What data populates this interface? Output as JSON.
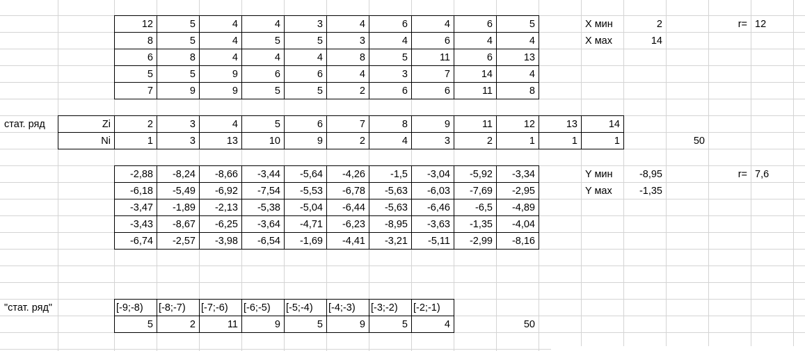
{
  "sheet": {
    "x_values": [
      [
        "12",
        "5",
        "4",
        "4",
        "3",
        "4",
        "6",
        "4",
        "6",
        "5"
      ],
      [
        "8",
        "5",
        "4",
        "5",
        "5",
        "3",
        "4",
        "6",
        "4",
        "4"
      ],
      [
        "6",
        "8",
        "4",
        "4",
        "4",
        "8",
        "5",
        "11",
        "6",
        "13"
      ],
      [
        "5",
        "5",
        "9",
        "6",
        "6",
        "4",
        "3",
        "7",
        "14",
        "4"
      ],
      [
        "7",
        "9",
        "9",
        "5",
        "5",
        "2",
        "6",
        "6",
        "11",
        "8"
      ]
    ],
    "x_stats": {
      "min_label": "X мин",
      "min_value": "2",
      "max_label": "X мах",
      "max_value": "14",
      "r_label": "r=",
      "r_value": "12"
    },
    "stat_series": {
      "title": "стат. ряд",
      "z_label": "Zi",
      "z_values": [
        "2",
        "3",
        "4",
        "5",
        "6",
        "7",
        "8",
        "9",
        "11",
        "12",
        "13",
        "14"
      ],
      "n_label": "Ni",
      "n_values": [
        "1",
        "3",
        "13",
        "10",
        "9",
        "2",
        "4",
        "3",
        "2",
        "1",
        "1",
        "1"
      ],
      "n_total": "50"
    },
    "y_values": [
      [
        "-2,88",
        "-8,24",
        "-8,66",
        "-3,44",
        "-5,64",
        "-4,26",
        "-1,5",
        "-3,04",
        "-5,92",
        "-3,34"
      ],
      [
        "-6,18",
        "-5,49",
        "-6,92",
        "-7,54",
        "-5,53",
        "-6,78",
        "-5,63",
        "-6,03",
        "-7,69",
        "-2,95"
      ],
      [
        "-3,47",
        "-1,89",
        "-2,13",
        "-5,38",
        "-5,04",
        "-6,44",
        "-5,63",
        "-6,46",
        "-6,5",
        "-4,89"
      ],
      [
        "-3,43",
        "-8,67",
        "-6,25",
        "-3,64",
        "-4,71",
        "-6,23",
        "-8,95",
        "-3,63",
        "-1,35",
        "-4,04"
      ],
      [
        "-6,74",
        "-2,57",
        "-3,98",
        "-6,54",
        "-1,69",
        "-4,41",
        "-3,21",
        "-5,11",
        "-2,99",
        "-8,16"
      ]
    ],
    "y_stats": {
      "min_label": "Y мин",
      "min_value": "-8,95",
      "max_label": "Y мах",
      "max_value": "-1,35",
      "r_label": "r=",
      "r_value": "7,6"
    },
    "interval_series": {
      "title": "\"стат. ряд\"",
      "intervals": [
        "[-9;-8)",
        "[-8;-7)",
        "[-7;-6)",
        "[-6;-5)",
        "[-5;-4)",
        "[-4;-3)",
        "[-3;-2)",
        "[-2;-1)"
      ],
      "counts": [
        "5",
        "2",
        "11",
        "9",
        "5",
        "9",
        "5",
        "4"
      ],
      "total": "50"
    },
    "colors": {
      "gridline": "#d4d4d4",
      "border": "#000000",
      "background": "#ffffff"
    }
  }
}
